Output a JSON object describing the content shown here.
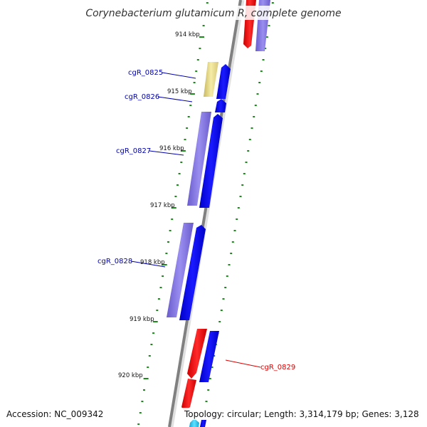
{
  "title": "Corynebacterium glutamicum R, complete genome",
  "footer": {
    "accession": "Accession: NC_009342",
    "topology": "Topology: circular; Length: 3,314,179 bp; Genes: 3,128"
  },
  "kbp_labels": [
    "914 kbp",
    "915 kbp",
    "916 kbp",
    "917 kbp",
    "918 kbp",
    "919 kbp",
    "920 kbp"
  ],
  "gene_labels": [
    "cgR_0825",
    "cgR_0826",
    "cgR_0827",
    "cgR_0828",
    "cgR_0829"
  ],
  "colors": {
    "backbone": "#808080",
    "tick": "#1a8a1a",
    "gene_blue": "#0000ee",
    "gene_purple": "#7a6cd8",
    "gene_yellow": "#eee08a",
    "gene_red": "#ee0000",
    "gene_cyan": "#22c8ee",
    "label_blue": "#0000aa",
    "label_red": "#dd0000"
  }
}
